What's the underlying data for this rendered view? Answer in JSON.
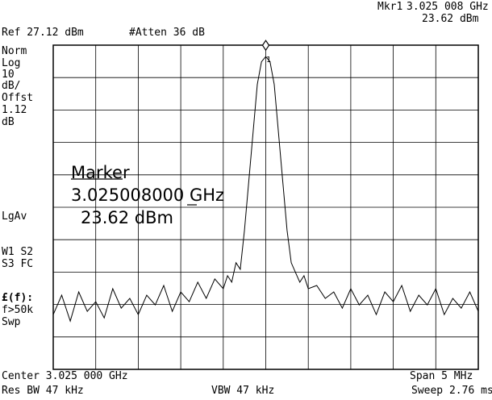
{
  "header": {
    "marker_label": "Mkr1",
    "marker_freq": "3.025 008 GHz",
    "marker_amp": "23.62 dBm",
    "ref_level": "Ref 27.12 dBm",
    "atten": "#Atten 36 dB"
  },
  "sidebar": {
    "lines": [
      "Norm",
      "Log",
      "10",
      "dB/",
      "Offst",
      "1.12",
      "dB"
    ],
    "avg": "LgAv",
    "w1": "W1  S2",
    "s3": "S3  FC",
    "trig_func": "£(f):",
    "trig_cond": "f>50k",
    "sweep_mode": "Swp"
  },
  "marker_box": {
    "title": "Marker",
    "frequency": "3.025008000 GHz",
    "amplitude": "23.62 dBm",
    "marker_number": "1"
  },
  "footer": {
    "center": "Center 3.025 000 GHz",
    "span": "Span 5 MHz",
    "res_bw": "Res BW 47 kHz",
    "vbw": "VBW 47 kHz",
    "sweep_time": "Sweep 2.76 ms"
  },
  "chart_data": {
    "type": "line",
    "title": "",
    "xlabel": "",
    "ylabel": "",
    "x_center_ghz": 3.025,
    "span_mhz": 5,
    "y_ref_dbm": 27.12,
    "y_scale_db_per_div": 10,
    "x_divisions": 10,
    "y_divisions": 10,
    "grid": true,
    "x_units": "MHz offset from center",
    "y_units": "dBm",
    "series": [
      {
        "x": [
          -2.5,
          -2.4,
          -2.3,
          -2.2,
          -2.1,
          -2.0,
          -1.9,
          -1.8,
          -1.7,
          -1.6,
          -1.5,
          -1.4,
          -1.3,
          -1.2,
          -1.1,
          -1.0,
          -0.9,
          -0.8,
          -0.7,
          -0.6,
          -0.5,
          -0.45,
          -0.4,
          -0.35,
          -0.3,
          -0.25,
          -0.2,
          -0.15,
          -0.1,
          -0.05,
          0.0,
          0.05,
          0.1,
          0.15,
          0.2,
          0.25,
          0.3,
          0.35,
          0.4,
          0.45,
          0.5,
          0.6,
          0.7,
          0.8,
          0.9,
          1.0,
          1.1,
          1.2,
          1.3,
          1.4,
          1.5,
          1.6,
          1.7,
          1.8,
          1.9,
          2.0,
          2.1,
          2.2,
          2.3,
          2.4,
          2.5
        ],
        "y": [
          -56,
          -50,
          -58,
          -49,
          -55,
          -52,
          -57,
          -48,
          -54,
          -51,
          -56,
          -50,
          -53,
          -47,
          -55,
          -49,
          -52,
          -46,
          -51,
          -45,
          -48,
          -44,
          -46,
          -40,
          -42,
          -30,
          -15,
          0,
          15,
          22,
          23.6,
          22,
          15,
          0,
          -15,
          -30,
          -40,
          -43,
          -46,
          -44,
          -48,
          -47,
          -51,
          -49,
          -54,
          -48,
          -53,
          -50,
          -56,
          -49,
          -52,
          -47,
          -55,
          -50,
          -53,
          -48,
          -56,
          -51,
          -54,
          -49,
          -55
        ]
      }
    ]
  }
}
